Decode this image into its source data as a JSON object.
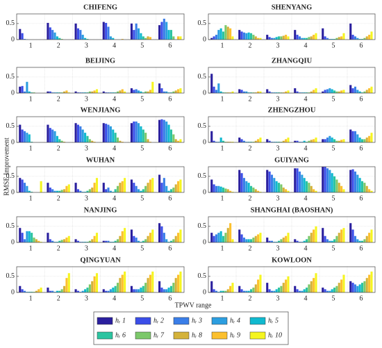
{
  "chart_data": {
    "type": "bar",
    "ylabel": "RMSE Improvement",
    "xlabel": "TPWV range",
    "categories": [
      "1",
      "2",
      "3",
      "4",
      "5",
      "6"
    ],
    "ylim": [
      0,
      0.8
    ],
    "yticks": [
      0,
      0.5
    ],
    "grid": true,
    "series": [
      {
        "name": "hᵣ 1",
        "color": "#2a1f9e"
      },
      {
        "name": "hᵣ 2",
        "color": "#3b4ee8"
      },
      {
        "name": "hᵣ 3",
        "color": "#3a7ee8"
      },
      {
        "name": "hᵣ 4",
        "color": "#2c9ee0"
      },
      {
        "name": "hᵣ 5",
        "color": "#10b9cf"
      },
      {
        "name": "hᵣ 6",
        "color": "#2cc4a0"
      },
      {
        "name": "hᵣ 7",
        "color": "#7cc86a"
      },
      {
        "name": "hᵣ 8",
        "color": "#d4b23a"
      },
      {
        "name": "hᵣ 9",
        "color": "#fcc02e"
      },
      {
        "name": "hᵣ 10",
        "color": "#f5f520"
      }
    ],
    "panels": [
      {
        "title": "CHIFENG",
        "values": [
          [
            0.33,
            0.2,
            0.02,
            0.01,
            0,
            0,
            0,
            0,
            0,
            0
          ],
          [
            0.52,
            0.38,
            0.3,
            0.22,
            0.1,
            0.05,
            0.02,
            0,
            0,
            0
          ],
          [
            0.5,
            0.35,
            0.3,
            0.15,
            0.05,
            0.02,
            0,
            0,
            0,
            0
          ],
          [
            0.55,
            0.52,
            0.4,
            0.1,
            0.05,
            0,
            0,
            0,
            0.02,
            0
          ],
          [
            0.5,
            0.3,
            0.5,
            0.35,
            0.2,
            0.1,
            0.05,
            0.1,
            0.08,
            0
          ],
          [
            0.45,
            0.55,
            0.65,
            0.55,
            0.3,
            0.3,
            0.1,
            0,
            0.1,
            0.1
          ]
        ]
      },
      {
        "title": "SHENYANG",
        "values": [
          [
            0.05,
            0.1,
            0.15,
            0.3,
            0.35,
            0.25,
            0.45,
            0.4,
            0.35,
            0.1
          ],
          [
            0.3,
            0.25,
            0.22,
            0.2,
            0.22,
            0.2,
            0.15,
            0.1,
            0.05,
            0.05
          ],
          [
            0.15,
            0.08,
            0.05,
            0.05,
            0.08,
            0.1,
            0.1,
            0.12,
            0.15,
            0.1
          ],
          [
            0.3,
            0.15,
            0.1,
            0.05,
            0.05,
            0.05,
            0.08,
            0.1,
            0.15,
            0.2
          ],
          [
            0.35,
            0.1,
            0.05,
            0.02,
            0.02,
            0.02,
            0.05,
            0.08,
            0.1,
            0.2
          ],
          [
            0.5,
            0.15,
            0.1,
            0.05,
            0.02,
            0.02,
            0.05,
            0.1,
            0.15,
            0.25
          ]
        ]
      },
      {
        "title": "BEIJING",
        "values": [
          [
            0.2,
            0.22,
            0.05,
            0.35,
            0.05,
            0.02,
            0.02,
            0,
            0,
            0
          ],
          [
            0.05,
            0.05,
            0.02,
            0.02,
            0.02,
            0.02,
            0.02,
            0.05,
            0.08,
            0.02
          ],
          [
            0.05,
            0.02,
            0.02,
            0.02,
            0.02,
            0.02,
            0.05,
            0.05,
            0.08,
            0.12
          ],
          [
            0.05,
            0.02,
            0.02,
            0.02,
            0.02,
            0.02,
            0.05,
            0.08,
            0.12,
            0.05
          ],
          [
            0.15,
            0.1,
            0.12,
            0.08,
            0.05,
            0.02,
            0.05,
            0.05,
            0.1,
            0.35
          ],
          [
            0.3,
            0.15,
            0.05,
            0.05,
            0.02,
            0.02,
            0.05,
            0.08,
            0.12,
            0.15
          ]
        ]
      },
      {
        "title": "ZHANGQIU",
        "values": [
          [
            0.6,
            0.2,
            0.1,
            0.3,
            0.05,
            0.02,
            0.02,
            0.02,
            0.02,
            0.05
          ],
          [
            0.12,
            0.1,
            0.05,
            0.05,
            0.02,
            0.02,
            0.02,
            0.02,
            0.05,
            0.05
          ],
          [
            0.12,
            0.05,
            0.02,
            0.02,
            0.02,
            0.02,
            0.02,
            0.02,
            0.05,
            0.08
          ],
          [
            0.15,
            0.05,
            0.02,
            0.02,
            0.02,
            0.02,
            0.02,
            0.05,
            0.1,
            0.15
          ],
          [
            0.05,
            0.1,
            0.12,
            0.15,
            0.12,
            0.08,
            0.05,
            0.05,
            0.08,
            0.1
          ],
          [
            0.25,
            0.15,
            0.2,
            0.1,
            0.05,
            0.02,
            0.05,
            0.1,
            0.15,
            0.2
          ]
        ]
      },
      {
        "title": "WENJIANG",
        "values": [
          [
            0.55,
            0.4,
            0.35,
            0.3,
            0.25,
            0.02,
            0,
            0,
            0,
            0
          ],
          [
            0.55,
            0.45,
            0.4,
            0.35,
            0.2,
            0.1,
            0.05,
            0.02,
            0,
            0
          ],
          [
            0.6,
            0.55,
            0.5,
            0.4,
            0.3,
            0.2,
            0.1,
            0.05,
            0.02,
            0
          ],
          [
            0.6,
            0.58,
            0.55,
            0.5,
            0.4,
            0.3,
            0.15,
            0.05,
            0.02,
            0
          ],
          [
            0.6,
            0.65,
            0.65,
            0.6,
            0.5,
            0.4,
            0.3,
            0.1,
            0.02,
            0
          ],
          [
            0.7,
            0.72,
            0.7,
            0.65,
            0.55,
            0.4,
            0.25,
            0.1,
            0.05,
            0.1
          ]
        ]
      },
      {
        "title": "ZHENGZHOU",
        "values": [
          [
            0.35,
            0.05,
            0.02,
            0.02,
            0.15,
            0.05,
            0.02,
            0.02,
            0.02,
            0.02
          ],
          [
            0.15,
            0.1,
            0.05,
            0.02,
            0.02,
            0.02,
            0.02,
            0.05,
            0.1,
            0.15
          ],
          [
            0.1,
            0.05,
            0.02,
            0.02,
            0.02,
            0.02,
            0.02,
            0.05,
            0.1,
            0.15
          ],
          [
            0.05,
            0.05,
            0.02,
            0.02,
            0.05,
            0.02,
            0.05,
            0.08,
            0.1,
            0.15
          ],
          [
            0.1,
            0.1,
            0.15,
            0.2,
            0.15,
            0.1,
            0.05,
            0.05,
            0.08,
            0.1
          ],
          [
            0.4,
            0.35,
            0.35,
            0.25,
            0.15,
            0.1,
            0.1,
            0.15,
            0.2,
            0.3
          ]
        ]
      },
      {
        "title": "WUHAN",
        "values": [
          [
            0.45,
            0.4,
            0.3,
            0.2,
            0.05,
            0.02,
            0,
            0,
            0,
            0.35
          ],
          [
            0.3,
            0.15,
            0.1,
            0.05,
            0.05,
            0.05,
            0.08,
            0.1,
            0.2,
            0.25
          ],
          [
            0.3,
            0.1,
            0.05,
            0.02,
            0.02,
            0.05,
            0.1,
            0.15,
            0.3,
            0.45
          ],
          [
            0.3,
            0.1,
            0.15,
            0.05,
            0.02,
            0.1,
            0.2,
            0.3,
            0.35,
            0.45
          ],
          [
            0.4,
            0.3,
            0.2,
            0.1,
            0.05,
            0.1,
            0.2,
            0.3,
            0.4,
            0.45
          ],
          [
            0.55,
            0.3,
            0.45,
            0.2,
            0.05,
            0.1,
            0.15,
            0.25,
            0.35,
            0.4
          ]
        ]
      },
      {
        "title": "GUIYANG",
        "values": [
          [
            0.4,
            0.25,
            0.2,
            0.2,
            0.18,
            0.15,
            0.12,
            0.1,
            0.05,
            0.02
          ],
          [
            0.7,
            0.6,
            0.45,
            0.35,
            0.3,
            0.2,
            0.15,
            0.1,
            0.05,
            0.02
          ],
          [
            0.7,
            0.65,
            0.55,
            0.45,
            0.35,
            0.3,
            0.25,
            0.15,
            0.1,
            0.05
          ],
          [
            0.75,
            0.75,
            0.65,
            0.55,
            0.45,
            0.35,
            0.3,
            0.2,
            0.1,
            0.05
          ],
          [
            0.8,
            0.8,
            0.75,
            0.7,
            0.6,
            0.5,
            0.4,
            0.3,
            0.2,
            0.1
          ],
          [
            0.7,
            0.72,
            0.65,
            0.55,
            0.45,
            0.35,
            0.3,
            0.2,
            0.1,
            0.05
          ]
        ]
      },
      {
        "title": "NANJING",
        "values": [
          [
            0.45,
            0.3,
            0.1,
            0.35,
            0.35,
            0.3,
            0.15,
            0.1,
            0.05,
            0.02
          ],
          [
            0.3,
            0.1,
            0.05,
            0.02,
            0.02,
            0.05,
            0.08,
            0.1,
            0.15,
            0.2
          ],
          [
            0.1,
            0.05,
            0.02,
            0.02,
            0.02,
            0.02,
            0.05,
            0.1,
            0.2,
            0.3
          ],
          [
            0.05,
            0.05,
            0.05,
            0.02,
            0.02,
            0.05,
            0.1,
            0.2,
            0.35,
            0.45
          ],
          [
            0.4,
            0.2,
            0.15,
            0.05,
            0.02,
            0.05,
            0.1,
            0.2,
            0.3,
            0.4
          ],
          [
            0.6,
            0.5,
            0.3,
            0.1,
            0.02,
            0.05,
            0.1,
            0.2,
            0.3,
            0.4
          ]
        ]
      },
      {
        "title": "SHANGHAI (BAOSHAN)",
        "values": [
          [
            0.3,
            0.2,
            0.25,
            0.3,
            0.35,
            0.2,
            0.3,
            0.45,
            0.6,
            0.1
          ],
          [
            0.4,
            0.25,
            0.15,
            0.1,
            0.1,
            0.1,
            0.15,
            0.2,
            0.25,
            0.3
          ],
          [
            0.15,
            0.05,
            0.05,
            0.02,
            0.02,
            0.05,
            0.1,
            0.15,
            0.2,
            0.3
          ],
          [
            0.1,
            0.05,
            0.02,
            0.02,
            0.05,
            0.1,
            0.2,
            0.3,
            0.4,
            0.5
          ],
          [
            0.45,
            0.2,
            0.1,
            0.05,
            0.05,
            0.1,
            0.2,
            0.3,
            0.4,
            0.45
          ],
          [
            0.6,
            0.4,
            0.2,
            0.1,
            0.05,
            0.05,
            0.1,
            0.2,
            0.3,
            0.4
          ]
        ]
      },
      {
        "title": "QINGYUAN",
        "values": [
          [
            0.2,
            0.1,
            0.05,
            0.02,
            0.02,
            0.02,
            0.02,
            0.05,
            0.1,
            0.15
          ],
          [
            0.15,
            0.05,
            0.05,
            0.02,
            0.05,
            0.05,
            0.1,
            0.2,
            0.45,
            0.6
          ],
          [
            0.1,
            0.05,
            0.02,
            0.05,
            0.1,
            0.15,
            0.25,
            0.35,
            0.5,
            0.6
          ],
          [
            0.1,
            0.05,
            0.05,
            0.1,
            0.15,
            0.2,
            0.3,
            0.45,
            0.55,
            0.65
          ],
          [
            0.2,
            0.1,
            0.1,
            0.1,
            0.15,
            0.2,
            0.3,
            0.45,
            0.55,
            0.65
          ],
          [
            0.35,
            0.15,
            0.1,
            0.1,
            0.15,
            0.2,
            0.3,
            0.45,
            0.55,
            0.65
          ]
        ]
      },
      {
        "title": "KOWLOON",
        "values": [
          [
            0.35,
            0.1,
            0.05,
            0.02,
            0.05,
            0.05,
            0.05,
            0.1,
            0.2,
            0.3
          ],
          [
            0.2,
            0.1,
            0.05,
            0.05,
            0.05,
            0.1,
            0.15,
            0.25,
            0.4,
            0.55
          ],
          [
            0.3,
            0.1,
            0.05,
            0.05,
            0.1,
            0.15,
            0.2,
            0.3,
            0.4,
            0.5
          ],
          [
            0.2,
            0.1,
            0.05,
            0.05,
            0.1,
            0.15,
            0.25,
            0.35,
            0.45,
            0.6
          ],
          [
            0.15,
            0.1,
            0.05,
            0.05,
            0.1,
            0.15,
            0.2,
            0.3,
            0.4,
            0.55
          ],
          [
            0.35,
            0.3,
            0.25,
            0.2,
            0.25,
            0.3,
            0.35,
            0.45,
            0.55,
            0.65
          ]
        ]
      }
    ]
  }
}
